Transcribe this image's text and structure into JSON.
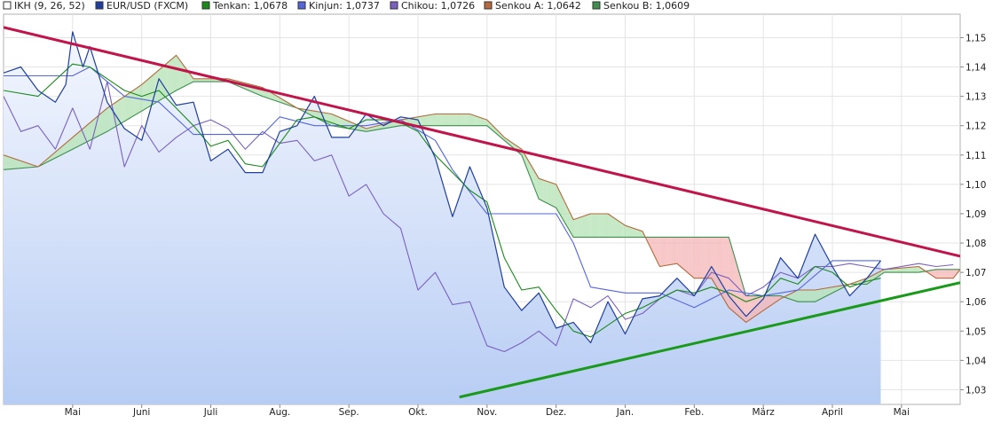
{
  "legend": [
    {
      "label": "IKH (9, 26, 52)",
      "color": "#ffffff"
    },
    {
      "label": "EUR/USD (FXCM)",
      "color": "#1f3f9f"
    },
    {
      "label": "Tenkan: 1,0678",
      "color": "#1a8a1a"
    },
    {
      "label": "Kinjun: 1,0737",
      "color": "#5566dd"
    },
    {
      "label": "Chikou: 1,0726",
      "color": "#7a60c0"
    },
    {
      "label": "Senkou A: 1,0642",
      "color": "#b46a3c"
    },
    {
      "label": "Senkou B: 1,0609",
      "color": "#3f8f4f"
    }
  ],
  "chart_data": {
    "type": "line",
    "ylim": [
      1.025,
      1.158
    ],
    "y_ticks": [
      "1,15",
      "1,14",
      "1,13",
      "1,12",
      "1,11",
      "1,10",
      "1,09",
      "1,08",
      "1,07",
      "1,06",
      "1,05",
      "1,04",
      "1,03"
    ],
    "y_tick_values": [
      1.15,
      1.14,
      1.13,
      1.12,
      1.11,
      1.1,
      1.09,
      1.08,
      1.07,
      1.06,
      1.05,
      1.04,
      1.03
    ],
    "x_ticks": [
      "Mai",
      "Juni",
      "Juli",
      "Aug.",
      "Sep.",
      "Okt.",
      "Nov.",
      "Dez.",
      "Jan.",
      "Feb.",
      "März",
      "April",
      "Mai"
    ],
    "x_tick_positions": [
      0.25,
      1.25,
      2.25,
      3.25,
      4.25,
      5.25,
      6.25,
      7.25,
      8.25,
      9.25,
      10.25,
      11.25,
      12.25
    ],
    "xlim": [
      -0.75,
      13.1
    ],
    "last_value_x": 11.95,
    "price_series": {
      "name": "EUR/USD (FXCM)",
      "x": [
        -0.75,
        -0.5,
        -0.25,
        0.0,
        0.15,
        0.25,
        0.4,
        0.5,
        0.75,
        1.0,
        1.25,
        1.5,
        1.75,
        2.0,
        2.25,
        2.5,
        2.75,
        3.0,
        3.25,
        3.5,
        3.75,
        4.0,
        4.25,
        4.5,
        4.75,
        5.0,
        5.25,
        5.5,
        5.75,
        6.0,
        6.25,
        6.5,
        6.75,
        7.0,
        7.25,
        7.5,
        7.75,
        8.0,
        8.25,
        8.5,
        8.75,
        9.0,
        9.25,
        9.5,
        9.75,
        10.0,
        10.25,
        10.5,
        10.75,
        11.0,
        11.25,
        11.5,
        11.75,
        11.95
      ],
      "y": [
        1.138,
        1.14,
        1.132,
        1.128,
        1.134,
        1.152,
        1.14,
        1.147,
        1.128,
        1.119,
        1.115,
        1.136,
        1.127,
        1.128,
        1.108,
        1.112,
        1.104,
        1.104,
        1.118,
        1.12,
        1.13,
        1.116,
        1.116,
        1.124,
        1.12,
        1.123,
        1.122,
        1.109,
        1.089,
        1.106,
        1.092,
        1.065,
        1.057,
        1.063,
        1.051,
        1.053,
        1.046,
        1.06,
        1.049,
        1.061,
        1.062,
        1.068,
        1.062,
        1.072,
        1.062,
        1.055,
        1.061,
        1.075,
        1.068,
        1.083,
        1.072,
        1.062,
        1.068,
        1.074
      ]
    },
    "series": [
      {
        "name": "Tenkan",
        "color": "#1a8a1a",
        "x": [
          -0.75,
          -0.25,
          0.25,
          0.5,
          0.75,
          1.0,
          1.25,
          1.5,
          1.75,
          2.0,
          2.25,
          2.5,
          2.75,
          3.0,
          3.25,
          3.5,
          3.75,
          4.0,
          4.25,
          4.5,
          4.75,
          5.0,
          5.25,
          5.5,
          5.75,
          6.0,
          6.25,
          6.5,
          6.75,
          7.0,
          7.25,
          7.5,
          7.75,
          8.0,
          8.25,
          8.5,
          8.75,
          9.0,
          9.25,
          9.5,
          9.75,
          10.0,
          10.25,
          10.5,
          10.75,
          11.0,
          11.25,
          11.5,
          11.75,
          11.95
        ],
        "y": [
          1.132,
          1.13,
          1.141,
          1.14,
          1.136,
          1.132,
          1.13,
          1.132,
          1.126,
          1.12,
          1.113,
          1.115,
          1.107,
          1.106,
          1.114,
          1.122,
          1.123,
          1.121,
          1.119,
          1.122,
          1.122,
          1.121,
          1.118,
          1.11,
          1.104,
          1.098,
          1.094,
          1.075,
          1.064,
          1.065,
          1.057,
          1.05,
          1.048,
          1.052,
          1.056,
          1.058,
          1.061,
          1.064,
          1.063,
          1.065,
          1.063,
          1.06,
          1.062,
          1.068,
          1.066,
          1.072,
          1.07,
          1.065,
          1.067,
          1.068
        ]
      },
      {
        "name": "Kinjun",
        "color": "#5566dd",
        "x": [
          -0.75,
          0.25,
          0.5,
          1.0,
          1.5,
          2.0,
          2.5,
          3.0,
          3.25,
          3.75,
          4.5,
          5.0,
          5.5,
          5.75,
          6.25,
          6.75,
          7.25,
          7.5,
          7.75,
          8.25,
          8.75,
          9.25,
          9.75,
          10.25,
          10.75,
          11.25,
          11.75,
          11.95
        ],
        "y": [
          1.137,
          1.137,
          1.14,
          1.13,
          1.128,
          1.117,
          1.117,
          1.117,
          1.123,
          1.12,
          1.12,
          1.122,
          1.115,
          1.105,
          1.09,
          1.09,
          1.09,
          1.08,
          1.065,
          1.063,
          1.063,
          1.058,
          1.064,
          1.062,
          1.064,
          1.074,
          1.074,
          1.074
        ]
      },
      {
        "name": "Chikou",
        "color": "#7a60c0",
        "x": [
          -0.75,
          -0.5,
          -0.25,
          0.0,
          0.25,
          0.5,
          0.75,
          1.0,
          1.25,
          1.5,
          1.75,
          2.0,
          2.25,
          2.5,
          2.75,
          3.0,
          3.25,
          3.5,
          3.75,
          4.0,
          4.25,
          4.5,
          4.75,
          5.0,
          5.25,
          5.5,
          5.75,
          6.0,
          6.25,
          6.5,
          6.75,
          7.0,
          7.25,
          7.5,
          7.75,
          8.0,
          8.25,
          8.5,
          8.75,
          9.0,
          9.25,
          9.5,
          9.75,
          10.0,
          10.25,
          10.5,
          10.75,
          11.0,
          11.25,
          11.5,
          11.75,
          12.0,
          12.25,
          12.5,
          12.75,
          13.0
        ],
        "y": [
          1.13,
          1.118,
          1.12,
          1.112,
          1.126,
          1.112,
          1.135,
          1.106,
          1.12,
          1.111,
          1.116,
          1.12,
          1.122,
          1.119,
          1.112,
          1.118,
          1.114,
          1.115,
          1.108,
          1.11,
          1.096,
          1.1,
          1.09,
          1.085,
          1.064,
          1.07,
          1.059,
          1.06,
          1.045,
          1.043,
          1.046,
          1.05,
          1.045,
          1.061,
          1.058,
          1.062,
          1.054,
          1.056,
          1.061,
          1.064,
          1.062,
          1.07,
          1.068,
          1.062,
          1.065,
          1.07,
          1.068,
          1.072,
          1.072,
          1.073,
          1.072,
          1.071,
          1.072,
          1.073,
          1.072,
          1.0726
        ]
      },
      {
        "name": "Senkou A",
        "color": "#b46a3c",
        "x": [
          -0.75,
          -0.25,
          0.25,
          0.75,
          1.25,
          1.75,
          2.0,
          2.5,
          3.0,
          3.5,
          4.0,
          4.5,
          5.0,
          5.5,
          6.0,
          6.25,
          6.5,
          6.75,
          7.0,
          7.25,
          7.5,
          7.75,
          8.0,
          8.25,
          8.5,
          8.75,
          9.0,
          9.25,
          9.5,
          9.75,
          10.0,
          10.25,
          10.5,
          10.75,
          11.0,
          11.5,
          11.75,
          12.0,
          12.5,
          12.75,
          13.0,
          13.1
        ],
        "y": [
          1.11,
          1.106,
          1.116,
          1.126,
          1.134,
          1.144,
          1.136,
          1.136,
          1.133,
          1.126,
          1.124,
          1.119,
          1.122,
          1.124,
          1.124,
          1.122,
          1.116,
          1.112,
          1.102,
          1.1,
          1.088,
          1.09,
          1.09,
          1.086,
          1.084,
          1.072,
          1.073,
          1.068,
          1.068,
          1.058,
          1.053,
          1.057,
          1.061,
          1.064,
          1.064,
          1.066,
          1.068,
          1.071,
          1.072,
          1.068,
          1.068,
          1.071
        ]
      },
      {
        "name": "Senkou B",
        "color": "#3f8f4f",
        "x": [
          -0.75,
          -0.25,
          0.25,
          0.75,
          1.25,
          1.75,
          2.0,
          2.5,
          3.0,
          3.5,
          4.0,
          4.5,
          5.0,
          5.5,
          6.0,
          6.25,
          6.5,
          6.75,
          7.0,
          7.25,
          7.5,
          7.75,
          8.0,
          8.25,
          8.5,
          8.75,
          9.0,
          9.25,
          9.5,
          9.75,
          10.0,
          10.25,
          10.5,
          10.75,
          11.0,
          11.5,
          11.75,
          12.0,
          12.5,
          12.75,
          13.0,
          13.1
        ],
        "y": [
          1.105,
          1.106,
          1.112,
          1.118,
          1.125,
          1.132,
          1.135,
          1.135,
          1.13,
          1.126,
          1.12,
          1.118,
          1.12,
          1.12,
          1.12,
          1.12,
          1.115,
          1.11,
          1.095,
          1.092,
          1.082,
          1.082,
          1.082,
          1.082,
          1.082,
          1.082,
          1.082,
          1.082,
          1.082,
          1.082,
          1.062,
          1.062,
          1.062,
          1.06,
          1.06,
          1.066,
          1.066,
          1.07,
          1.07,
          1.071,
          1.071,
          1.071
        ]
      }
    ],
    "trendlines": [
      {
        "color": "#c0144a",
        "x": [
          -0.75,
          13.1
        ],
        "y": [
          1.1535,
          1.0755
        ]
      },
      {
        "color": "#1a9a1a",
        "x": [
          5.85,
          13.1
        ],
        "y": [
          1.0275,
          1.0665
        ]
      }
    ],
    "grid": true
  }
}
